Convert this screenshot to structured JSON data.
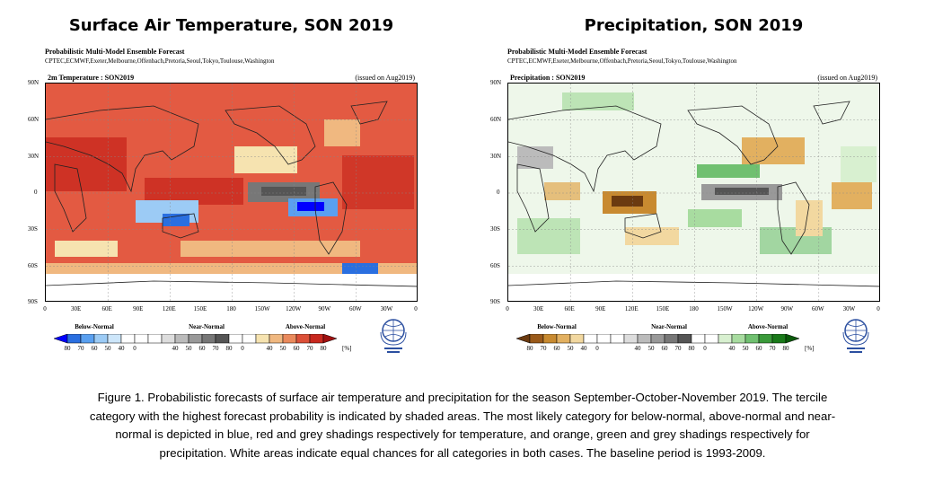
{
  "panels": [
    {
      "id": "temperature",
      "title": "Surface Air Temperature, SON 2019",
      "subtitle": "Probabilistic Multi-Model Ensemble Forecast",
      "centres": "CPTEC,ECMWF,Exeter,Melbourne,Offenbach,Pretoria,Seoul,Tokyo,Toulouse,Washington",
      "map_label": "2m Temperature : SON2019",
      "issued": "(issued on Aug2019)",
      "legend": {
        "below": "Below-Normal",
        "near": "Near-Normal",
        "above": "Above-Normal",
        "unit": "[%]",
        "colors": [
          "#0000ff",
          "#2a6fe0",
          "#5aa0f0",
          "#9ccbf5",
          "#cde6fa",
          "#ffffff",
          "#ffffff",
          "#ffffff",
          "#dddddd",
          "#bbbbbb",
          "#999999",
          "#777777",
          "#555555",
          "#ffffff",
          "#ffffff",
          "#f6e3b0",
          "#f0b880",
          "#ea8a5c",
          "#dc5038",
          "#c8281e",
          "#a01010"
        ]
      },
      "land_color": "none",
      "background": "#e35a42"
    },
    {
      "id": "precipitation",
      "title": "Precipitation, SON 2019",
      "subtitle": "Probabilistic Multi-Model Ensemble Forecast",
      "centres": "CPTEC,ECMWF,Exeter,Melbourne,Offenbach,Pretoria,Seoul,Tokyo,Toulouse,Washington",
      "map_label": "Precipitation : SON2019",
      "issued": "(issued on Aug2019)",
      "legend": {
        "below": "Below-Normal",
        "near": "Near-Normal",
        "above": "Above-Normal",
        "unit": "[%]",
        "colors": [
          "#6b3a10",
          "#9a5a1a",
          "#c88a30",
          "#e2b060",
          "#f2d8a0",
          "#ffffff",
          "#ffffff",
          "#ffffff",
          "#dddddd",
          "#bbbbbb",
          "#999999",
          "#777777",
          "#555555",
          "#ffffff",
          "#ffffff",
          "#d8f0d0",
          "#a8dca0",
          "#70c070",
          "#3a9a3a",
          "#1a7a1a",
          "#0a5a0a"
        ]
      },
      "background": "#eef7ea"
    }
  ],
  "axes": {
    "lat_labels": [
      "90N",
      "60N",
      "30N",
      "0",
      "30S",
      "60S",
      "90S"
    ],
    "lon_labels": [
      "0",
      "30E",
      "60E",
      "90E",
      "120E",
      "150E",
      "180",
      "150W",
      "120W",
      "90W",
      "60W",
      "30W",
      "0"
    ],
    "tick_labels": [
      "80",
      "70",
      "60",
      "50",
      "40",
      "0",
      "40",
      "50",
      "60",
      "70",
      "80",
      "0",
      "40",
      "50",
      "60",
      "70",
      "80"
    ]
  },
  "caption": {
    "line1": "Figure 1. Probabilistic forecasts of surface air temperature and precipitation for the season September-October-November 2019.  The tercile",
    "line2": "category with the highest forecast probability is indicated by shaded areas. The most likely category for below-normal, above-normal and near-",
    "line3": "normal is depicted in blue, red and grey shadings respectively for temperature, and orange, green and grey shadings respectively for",
    "line4": "precipitation. White areas indicate equal chances for all categories in both cases.  The baseline period is 1993-2009."
  }
}
